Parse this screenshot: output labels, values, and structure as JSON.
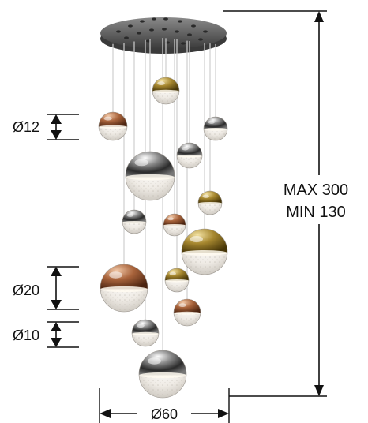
{
  "dimensions": {
    "d12": "Ø12",
    "d20": "Ø20",
    "d10": "Ø10",
    "d60": "Ø60",
    "height_max": "MAX 300",
    "height_min": "MIN 130"
  },
  "colors": {
    "line": "#111111",
    "canopy": "#5f5f5f",
    "copper": "#a5633c",
    "gold": "#a0822f",
    "chrome": "#5a5a5a",
    "glass": "#ece8e2"
  }
}
